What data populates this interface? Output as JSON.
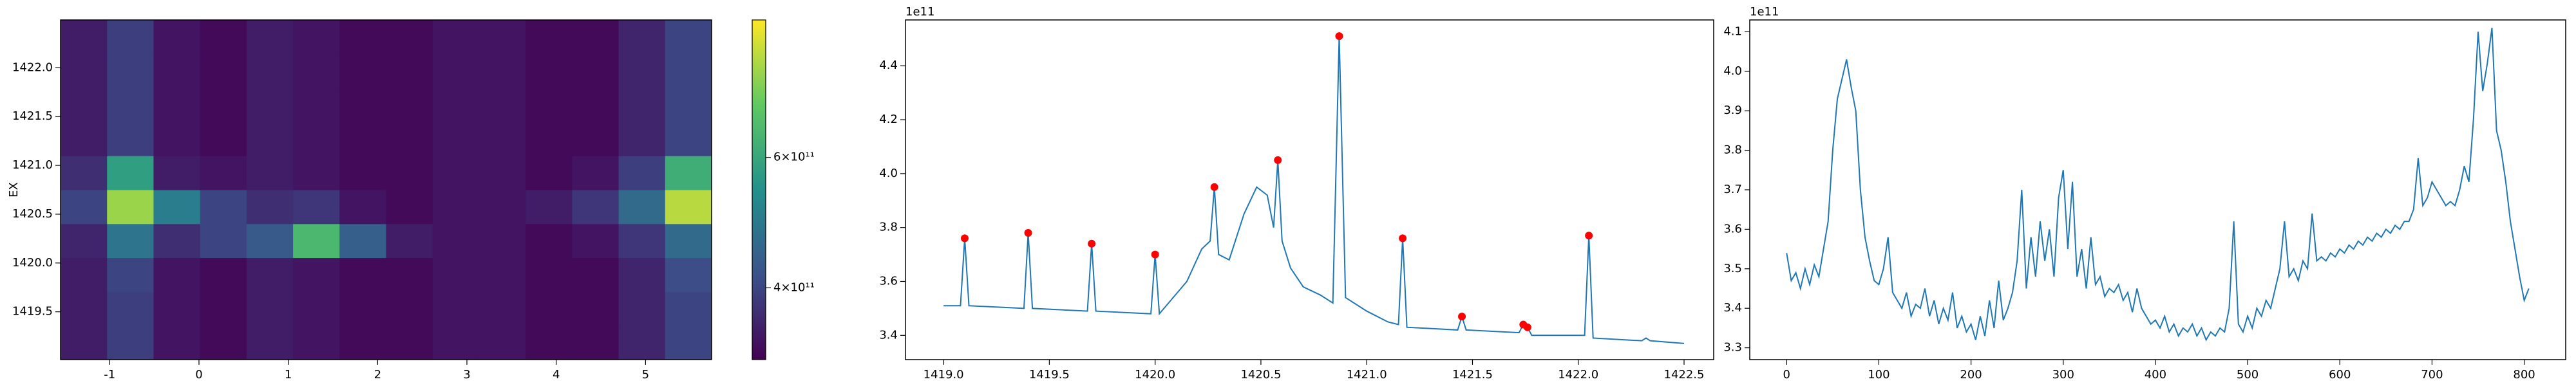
{
  "chart_data": [
    {
      "type": "heatmap",
      "ylabel": "EX",
      "colormap": "viridis",
      "xlim": [
        -1.55,
        5.74
      ],
      "ylim": [
        1419.01,
        1422.49
      ],
      "xticks": [
        -1,
        0,
        1,
        2,
        3,
        4,
        5
      ],
      "yticks": [
        1419.5,
        {
          "value": 1420.0,
          "label": "1420.0"
        },
        1420.5,
        {
          "value": 1421.0,
          "label": "1421.0"
        },
        1421.5,
        {
          "value": 1422.0,
          "label": "1422.0"
        }
      ],
      "z": [
        [
          350000000000.0,
          390000000000.0,
          340000000000.0,
          330000000000.0,
          350000000000.0,
          340000000000.0,
          330000000000.0,
          330000000000.0,
          340000000000.0,
          340000000000.0,
          330000000000.0,
          330000000000.0,
          360000000000.0,
          400000000000.0
        ],
        [
          350000000000.0,
          390000000000.0,
          340000000000.0,
          330000000000.0,
          350000000000.0,
          340000000000.0,
          330000000000.0,
          330000000000.0,
          340000000000.0,
          340000000000.0,
          330000000000.0,
          330000000000.0,
          360000000000.0,
          400000000000.0
        ],
        [
          350000000000.0,
          400000000000.0,
          340000000000.0,
          330000000000.0,
          350000000000.0,
          340000000000.0,
          330000000000.0,
          330000000000.0,
          340000000000.0,
          340000000000.0,
          330000000000.0,
          330000000000.0,
          360000000000.0,
          410000000000.0
        ],
        [
          360000000000.0,
          480000000000.0,
          370000000000.0,
          400000000000.0,
          430000000000.0,
          650000000000.0,
          440000000000.0,
          350000000000.0,
          340000000000.0,
          340000000000.0,
          330000000000.0,
          340000000000.0,
          380000000000.0,
          460000000000.0
        ],
        [
          400000000000.0,
          780000000000.0,
          500000000000.0,
          400000000000.0,
          370000000000.0,
          380000000000.0,
          340000000000.0,
          330000000000.0,
          340000000000.0,
          340000000000.0,
          350000000000.0,
          380000000000.0,
          460000000000.0,
          820000000000.0
        ],
        [
          370000000000.0,
          580000000000.0,
          350000000000.0,
          340000000000.0,
          350000000000.0,
          340000000000.0,
          330000000000.0,
          330000000000.0,
          340000000000.0,
          340000000000.0,
          330000000000.0,
          340000000000.0,
          390000000000.0,
          620000000000.0
        ],
        [
          350000000000.0,
          390000000000.0,
          340000000000.0,
          330000000000.0,
          350000000000.0,
          340000000000.0,
          330000000000.0,
          330000000000.0,
          340000000000.0,
          340000000000.0,
          330000000000.0,
          330000000000.0,
          360000000000.0,
          400000000000.0
        ],
        [
          350000000000.0,
          390000000000.0,
          340000000000.0,
          330000000000.0,
          350000000000.0,
          340000000000.0,
          330000000000.0,
          330000000000.0,
          340000000000.0,
          340000000000.0,
          330000000000.0,
          330000000000.0,
          360000000000.0,
          400000000000.0
        ],
        [
          350000000000.0,
          390000000000.0,
          340000000000.0,
          330000000000.0,
          350000000000.0,
          340000000000.0,
          330000000000.0,
          330000000000.0,
          340000000000.0,
          340000000000.0,
          330000000000.0,
          330000000000.0,
          360000000000.0,
          400000000000.0
        ],
        [
          350000000000.0,
          390000000000.0,
          340000000000.0,
          330000000000.0,
          350000000000.0,
          340000000000.0,
          330000000000.0,
          330000000000.0,
          340000000000.0,
          340000000000.0,
          330000000000.0,
          330000000000.0,
          360000000000.0,
          400000000000.0
        ]
      ],
      "colorbar": {
        "log": true,
        "lim": [
          320000000000.0,
          920000000000.0
        ],
        "ticks": [
          {
            "value": 400000000000.0,
            "label": "4×10¹¹"
          },
          {
            "value": 600000000000.0,
            "label": "6×10¹¹"
          }
        ]
      }
    },
    {
      "type": "line",
      "offset": "1e11",
      "xlim": [
        1418.82,
        1422.64
      ],
      "ylim": [
        3.31,
        4.57
      ],
      "xticks": [
        {
          "value": 1419.0,
          "label": "1419.0"
        },
        1419.5,
        {
          "value": 1420.0,
          "label": "1420.0"
        },
        1420.5,
        {
          "value": 1421.0,
          "label": "1421.0"
        },
        1421.5,
        {
          "value": 1422.0,
          "label": "1422.0"
        },
        1422.5
      ],
      "yticks": [
        3.4,
        3.6,
        3.8,
        {
          "value": 4.0,
          "label": "4.0"
        },
        4.2,
        4.4
      ],
      "x": [
        1419.0,
        1419.08,
        1419.1,
        1419.12,
        1419.38,
        1419.4,
        1419.42,
        1419.68,
        1419.7,
        1419.72,
        1419.98,
        1420.0,
        1420.02,
        1420.15,
        1420.22,
        1420.26,
        1420.28,
        1420.3,
        1420.35,
        1420.42,
        1420.48,
        1420.53,
        1420.56,
        1420.58,
        1420.6,
        1420.64,
        1420.7,
        1420.78,
        1420.84,
        1420.87,
        1420.9,
        1421.0,
        1421.1,
        1421.15,
        1421.17,
        1421.19,
        1421.43,
        1421.45,
        1421.47,
        1421.72,
        1421.74,
        1421.76,
        1421.78,
        1422.03,
        1422.05,
        1422.07,
        1422.3,
        1422.32,
        1422.34,
        1422.5
      ],
      "series": [
        {
          "color": "#1f77b4",
          "values": [
            3.51,
            3.51,
            3.76,
            3.51,
            3.5,
            3.78,
            3.5,
            3.49,
            3.74,
            3.49,
            3.48,
            3.7,
            3.48,
            3.6,
            3.72,
            3.75,
            3.95,
            3.7,
            3.68,
            3.85,
            3.95,
            3.92,
            3.8,
            4.05,
            3.75,
            3.65,
            3.58,
            3.55,
            3.52,
            4.51,
            3.54,
            3.49,
            3.45,
            3.44,
            3.76,
            3.43,
            3.42,
            3.47,
            3.42,
            3.41,
            3.44,
            3.43,
            3.4,
            3.4,
            3.77,
            3.39,
            3.38,
            3.39,
            3.38,
            3.37
          ]
        }
      ],
      "markers": {
        "color": "#ff0000",
        "x": [
          1419.1,
          1419.4,
          1419.7,
          1420.0,
          1420.28,
          1420.58,
          1420.87,
          1421.17,
          1421.45,
          1421.74,
          1421.76,
          1422.05
        ],
        "values": [
          3.76,
          3.78,
          3.74,
          3.7,
          3.95,
          4.05,
          4.51,
          3.76,
          3.47,
          3.44,
          3.43,
          3.77
        ]
      }
    },
    {
      "type": "line",
      "offset": "1e11",
      "xlim": [
        -40,
        845
      ],
      "ylim": [
        3.27,
        4.13
      ],
      "xticks": [
        0,
        100,
        200,
        300,
        400,
        500,
        600,
        700,
        800
      ],
      "yticks": [
        3.3,
        3.4,
        3.5,
        3.6,
        3.7,
        3.8,
        3.9,
        {
          "value": 4.0,
          "label": "4.0"
        },
        4.1
      ],
      "x": [
        0,
        5,
        10,
        15,
        20,
        25,
        30,
        35,
        40,
        45,
        50,
        55,
        60,
        65,
        70,
        75,
        80,
        85,
        90,
        95,
        100,
        105,
        110,
        115,
        120,
        125,
        130,
        135,
        140,
        145,
        150,
        155,
        160,
        165,
        170,
        175,
        180,
        185,
        190,
        195,
        200,
        205,
        210,
        215,
        220,
        225,
        230,
        235,
        240,
        245,
        250,
        255,
        260,
        265,
        270,
        275,
        280,
        285,
        290,
        295,
        300,
        305,
        310,
        315,
        320,
        325,
        330,
        335,
        340,
        345,
        350,
        355,
        360,
        365,
        370,
        375,
        380,
        385,
        390,
        395,
        400,
        405,
        410,
        415,
        420,
        425,
        430,
        435,
        440,
        445,
        450,
        455,
        460,
        465,
        470,
        475,
        480,
        485,
        490,
        495,
        500,
        505,
        510,
        515,
        520,
        525,
        530,
        535,
        540,
        545,
        550,
        555,
        560,
        565,
        570,
        575,
        580,
        585,
        590,
        595,
        600,
        605,
        610,
        615,
        620,
        625,
        630,
        635,
        640,
        645,
        650,
        655,
        660,
        665,
        670,
        675,
        680,
        685,
        690,
        695,
        700,
        705,
        710,
        715,
        720,
        725,
        730,
        735,
        740,
        745,
        750,
        755,
        760,
        765,
        770,
        775,
        780,
        785,
        790,
        795,
        800,
        805
      ],
      "series": [
        {
          "color": "#1f77b4",
          "values": [
            3.54,
            3.47,
            3.49,
            3.45,
            3.5,
            3.46,
            3.51,
            3.48,
            3.55,
            3.62,
            3.8,
            3.93,
            3.98,
            4.03,
            3.96,
            3.9,
            3.7,
            3.58,
            3.52,
            3.47,
            3.46,
            3.5,
            3.58,
            3.44,
            3.42,
            3.4,
            3.44,
            3.38,
            3.41,
            3.4,
            3.45,
            3.38,
            3.42,
            3.36,
            3.4,
            3.37,
            3.44,
            3.35,
            3.38,
            3.34,
            3.36,
            3.32,
            3.38,
            3.33,
            3.42,
            3.35,
            3.47,
            3.37,
            3.4,
            3.44,
            3.52,
            3.7,
            3.45,
            3.58,
            3.48,
            3.62,
            3.52,
            3.6,
            3.48,
            3.68,
            3.75,
            3.55,
            3.72,
            3.48,
            3.55,
            3.45,
            3.58,
            3.46,
            3.48,
            3.43,
            3.45,
            3.44,
            3.46,
            3.42,
            3.44,
            3.39,
            3.45,
            3.4,
            3.38,
            3.36,
            3.37,
            3.35,
            3.38,
            3.34,
            3.36,
            3.33,
            3.35,
            3.34,
            3.36,
            3.33,
            3.35,
            3.32,
            3.34,
            3.33,
            3.35,
            3.34,
            3.4,
            3.62,
            3.36,
            3.34,
            3.38,
            3.35,
            3.4,
            3.38,
            3.42,
            3.4,
            3.45,
            3.5,
            3.62,
            3.48,
            3.5,
            3.47,
            3.52,
            3.5,
            3.64,
            3.52,
            3.53,
            3.52,
            3.54,
            3.53,
            3.55,
            3.54,
            3.56,
            3.55,
            3.57,
            3.56,
            3.58,
            3.57,
            3.59,
            3.58,
            3.6,
            3.59,
            3.61,
            3.6,
            3.62,
            3.62,
            3.65,
            3.78,
            3.66,
            3.68,
            3.72,
            3.7,
            3.68,
            3.66,
            3.67,
            3.66,
            3.7,
            3.76,
            3.72,
            3.88,
            4.1,
            3.95,
            4.02,
            4.11,
            3.85,
            3.8,
            3.72,
            3.62,
            3.55,
            3.48,
            3.42,
            3.45
          ]
        }
      ]
    }
  ]
}
